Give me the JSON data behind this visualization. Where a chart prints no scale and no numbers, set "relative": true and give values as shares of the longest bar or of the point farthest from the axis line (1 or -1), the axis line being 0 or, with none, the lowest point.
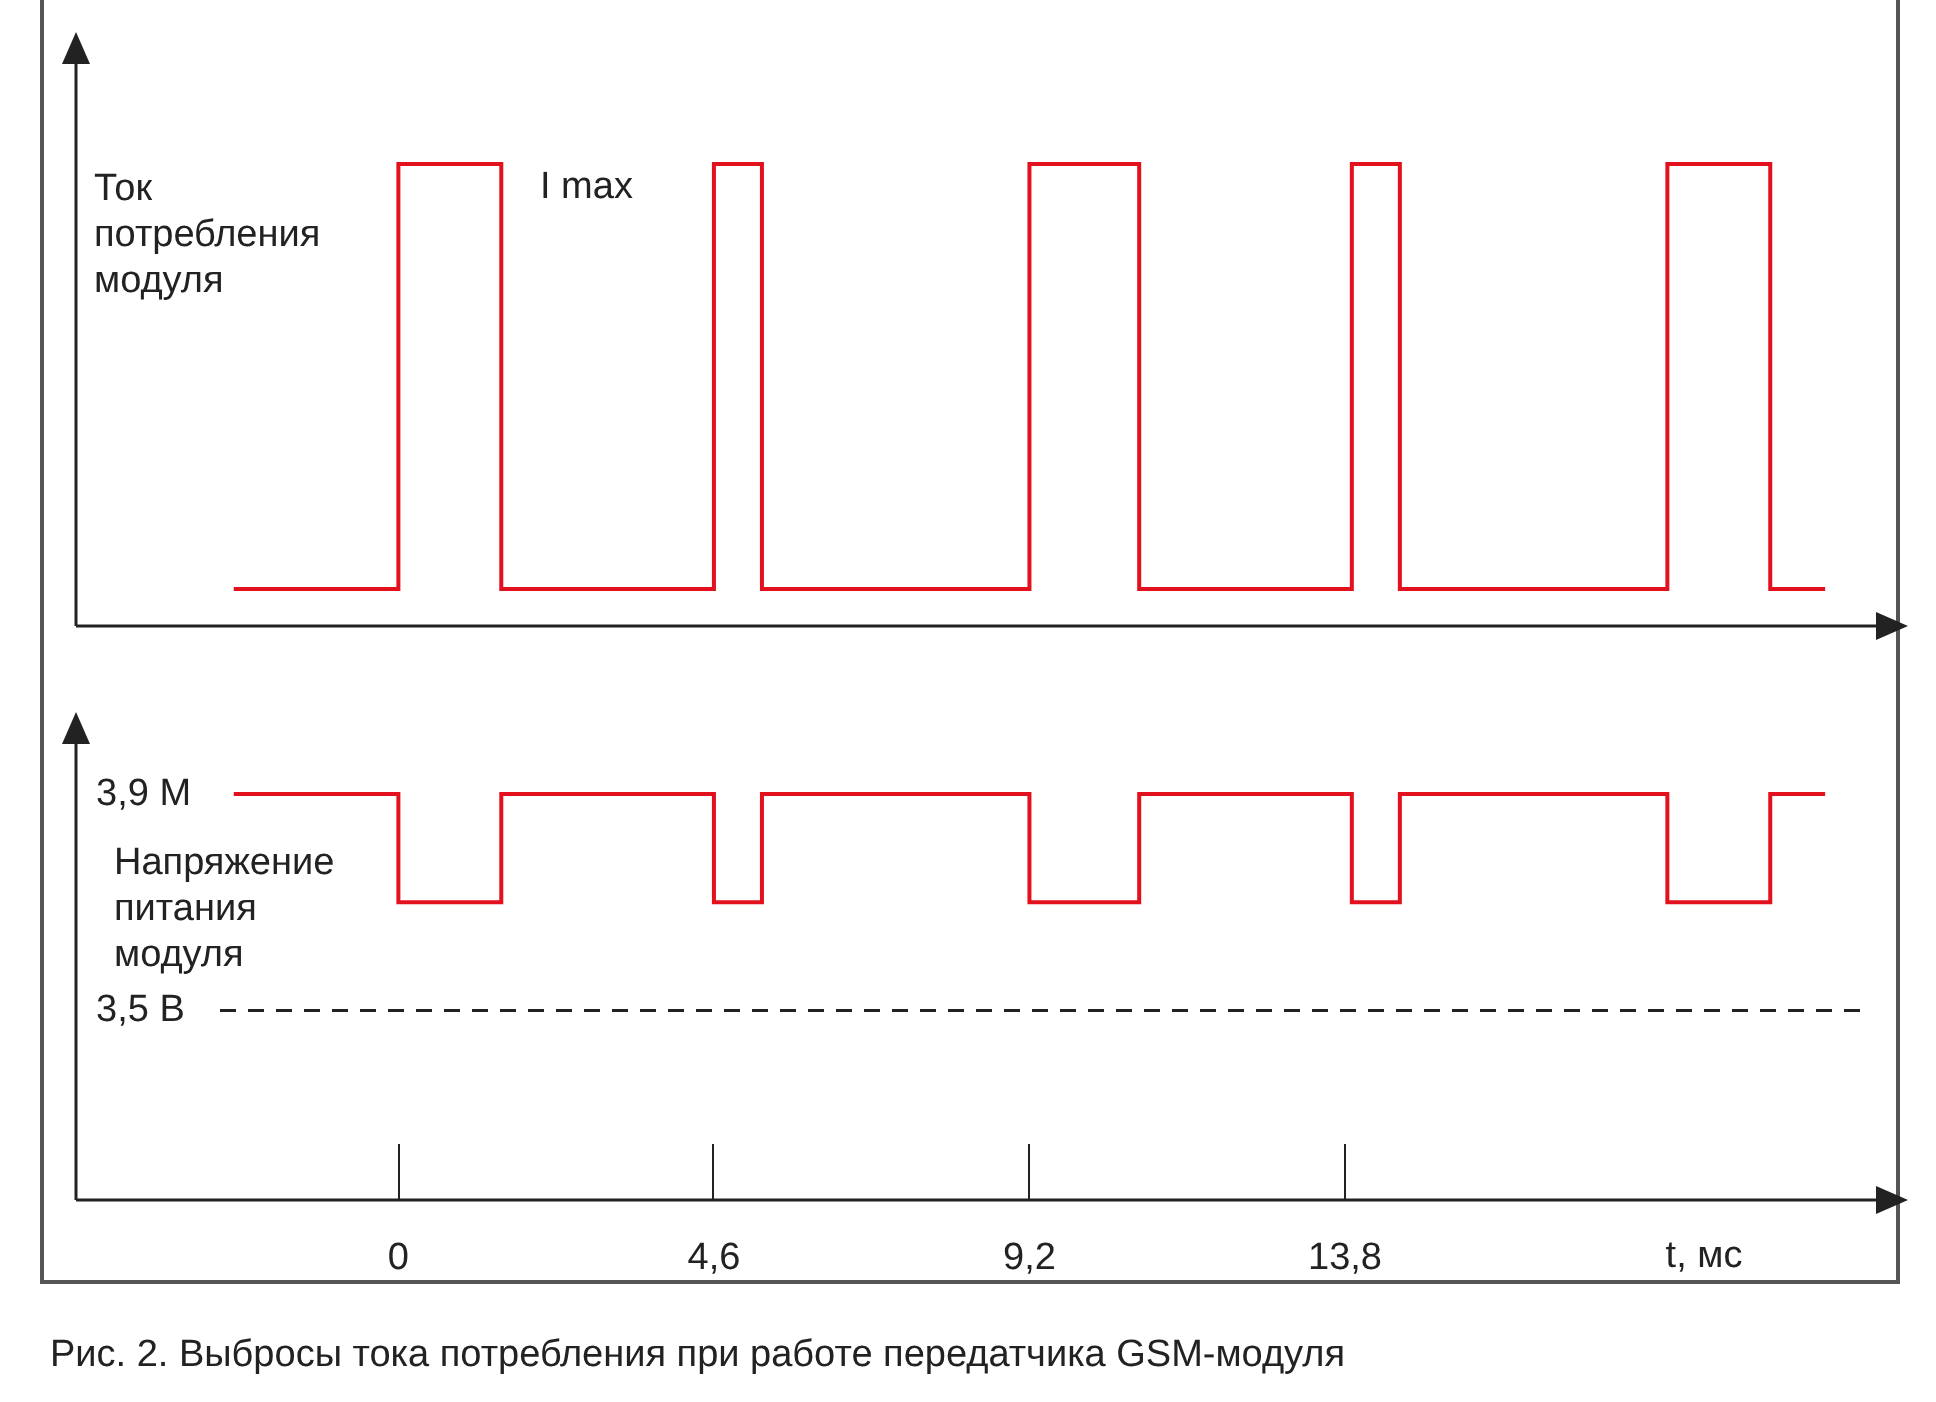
{
  "chart_data": [
    {
      "type": "step",
      "ylabel": "Ток потребления модуля",
      "relative": true,
      "xlim": [
        -4.7,
        21.6
      ],
      "grid": false,
      "legend": false,
      "annotations": [
        "I max"
      ],
      "series": [
        {
          "color": "#e3101e",
          "x": [
            -2.4,
            0,
            1.5,
            4.6,
            5.3,
            9.2,
            10.8,
            13.9,
            14.6,
            18.5,
            20.0,
            20.8
          ],
          "values": [
            0.08,
            1,
            0.08,
            1,
            0.08,
            1,
            0.08,
            1,
            0.08,
            1,
            0.08,
            0.08
          ]
        }
      ]
    },
    {
      "type": "step",
      "ylabel": "Напряжение питания модуля",
      "xlabel": "t, мс",
      "xlim": [
        -4.7,
        21.6
      ],
      "ylim": [
        3.15,
        4.0
      ],
      "xticks": [
        {
          "value": 0,
          "label": "0"
        },
        {
          "value": 4.6,
          "label": "4,6"
        },
        {
          "value": 9.2,
          "label": "9,2"
        },
        {
          "value": 13.8,
          "label": "13,8"
        }
      ],
      "yticks": [
        {
          "value": 3.9,
          "label": "3,9 М"
        },
        {
          "value": 3.5,
          "label": "3,5 В"
        }
      ],
      "grid": false,
      "legend": false,
      "ref_lines": [
        {
          "axis": "y",
          "value": 3.5,
          "line_style": "dashed",
          "color": "#222222"
        }
      ],
      "annotations": [
        "Рис. 2. Выбросы тока потребления при работе передатчика GSM-модуля"
      ],
      "series": [
        {
          "color": "#e3101e",
          "x": [
            -2.4,
            0,
            1.5,
            4.6,
            5.3,
            9.2,
            10.8,
            13.9,
            14.6,
            18.5,
            20.0,
            20.8
          ],
          "values": [
            3.9,
            3.7,
            3.9,
            3.7,
            3.9,
            3.7,
            3.9,
            3.7,
            3.9,
            3.7,
            3.9,
            3.9
          ]
        }
      ]
    }
  ]
}
